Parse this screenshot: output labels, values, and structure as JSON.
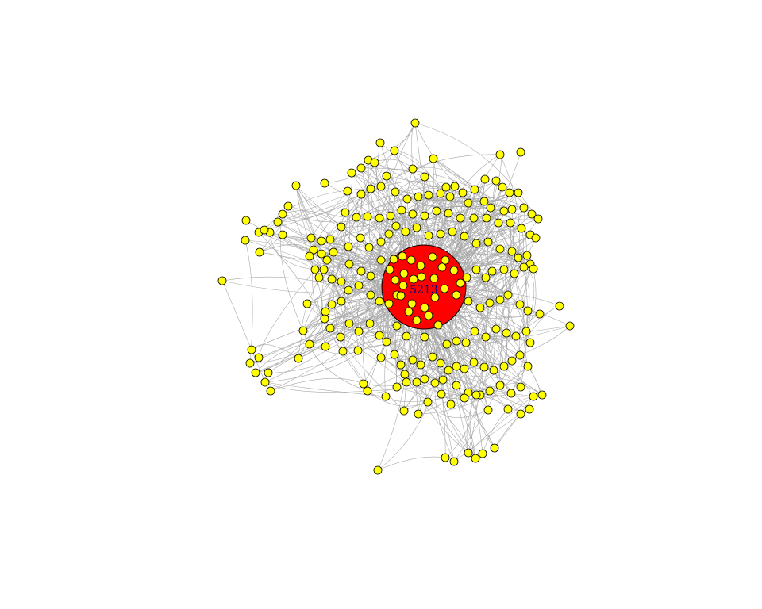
{
  "diagram": {
    "type": "network-graph",
    "background": "#ffffff",
    "edge_color": "#a9a9a9",
    "node_fill": "#ffff00",
    "node_stroke": "#000000",
    "hub": {
      "label": "5213",
      "fill": "#ff0000",
      "label_color": "#000080"
    }
  }
}
